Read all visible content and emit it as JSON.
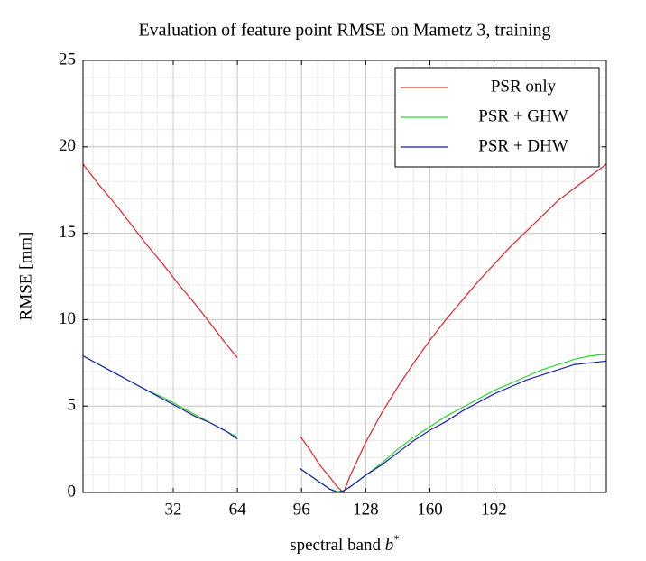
{
  "chart_data": {
    "type": "line",
    "title": "Evaluation of feature point RMSE on Mametz 3, training",
    "xlabel": {
      "text": "spectral band",
      "symbol": "b",
      "superscript": "*"
    },
    "ylabel": "RMSE [mm]",
    "x": [
      -13,
      -5,
      3,
      11,
      19,
      27,
      35,
      43,
      51,
      59,
      64,
      80,
      95,
      100,
      105,
      110,
      114,
      117,
      120,
      128,
      136,
      144,
      152,
      160,
      168,
      176,
      184,
      192,
      200,
      208,
      216,
      224,
      232,
      240,
      248
    ],
    "series": [
      {
        "name": "PSR only",
        "color": "#e8202a",
        "values": [
          19.0,
          17.8,
          16.7,
          15.5,
          14.3,
          13.2,
          12.0,
          10.9,
          9.7,
          8.5,
          7.8,
          null,
          3.3,
          2.5,
          1.6,
          0.9,
          0.3,
          0.0,
          0.9,
          2.9,
          4.6,
          6.1,
          7.5,
          8.8,
          10.0,
          11.1,
          12.2,
          13.2,
          14.2,
          15.1,
          16.0,
          16.9,
          17.6,
          18.3,
          19.0
        ]
      },
      {
        "name": "PSR + GHW",
        "color": "#2fd32f",
        "values": [
          7.9,
          7.4,
          6.9,
          6.4,
          5.9,
          5.5,
          5.0,
          4.5,
          4.0,
          3.5,
          3.2,
          null,
          1.4,
          1.0,
          0.6,
          0.2,
          0.05,
          0.1,
          0.3,
          1.0,
          1.7,
          2.5,
          3.2,
          3.8,
          4.4,
          4.9,
          5.4,
          5.9,
          6.3,
          6.7,
          7.1,
          7.4,
          7.7,
          7.9,
          8.0
        ]
      },
      {
        "name": "PSR + DHW",
        "color": "#1b1fb4",
        "values": [
          7.9,
          7.4,
          6.9,
          6.4,
          5.9,
          5.4,
          4.9,
          4.4,
          4.0,
          3.5,
          3.1,
          null,
          1.4,
          1.0,
          0.6,
          0.2,
          0.0,
          0.1,
          0.3,
          1.0,
          1.6,
          2.3,
          3.0,
          3.6,
          4.1,
          4.7,
          5.2,
          5.7,
          6.1,
          6.5,
          6.8,
          7.1,
          7.4,
          7.5,
          7.6
        ]
      }
    ],
    "xlim": [
      -13,
      248
    ],
    "xticks": [
      32,
      64,
      96,
      128,
      160,
      192
    ],
    "ylim": [
      0,
      25
    ],
    "yticks": [
      0,
      5,
      10,
      15,
      20,
      25
    ],
    "grid": true,
    "minor_grid": true,
    "legend": "top-right"
  }
}
